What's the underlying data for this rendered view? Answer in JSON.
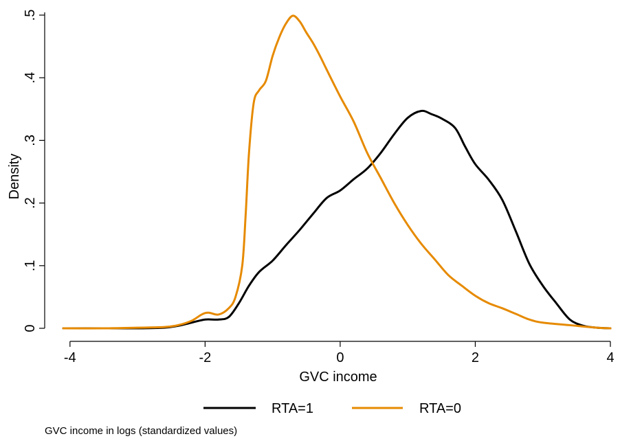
{
  "chart_data": {
    "type": "line",
    "title": "",
    "xlabel": "GVC income",
    "ylabel": "Density",
    "xlim": [
      -4.1,
      4.0
    ],
    "ylim": [
      0,
      0.5
    ],
    "xticks": [
      -4,
      -2,
      0,
      2,
      4
    ],
    "xtick_labels": [
      "-4",
      "-2",
      "0",
      "2",
      "4"
    ],
    "yticks": [
      0,
      0.1,
      0.2,
      0.3,
      0.4,
      0.5
    ],
    "ytick_labels": [
      "0",
      ".1",
      ".2",
      ".3",
      ".4",
      ".5"
    ],
    "grid": false,
    "legend_position": "bottom",
    "note": "GVC income in logs (standardized values)",
    "series": [
      {
        "name": "RTA=1",
        "color": "#000000",
        "points": [
          [
            -4.1,
            0.0
          ],
          [
            -3.5,
            0.0
          ],
          [
            -3.0,
            0.0
          ],
          [
            -2.6,
            0.001
          ],
          [
            -2.4,
            0.004
          ],
          [
            -2.2,
            0.009
          ],
          [
            -2.0,
            0.014
          ],
          [
            -1.8,
            0.014
          ],
          [
            -1.65,
            0.018
          ],
          [
            -1.5,
            0.04
          ],
          [
            -1.35,
            0.068
          ],
          [
            -1.2,
            0.09
          ],
          [
            -1.0,
            0.108
          ],
          [
            -0.8,
            0.133
          ],
          [
            -0.6,
            0.157
          ],
          [
            -0.4,
            0.183
          ],
          [
            -0.2,
            0.208
          ],
          [
            0.0,
            0.22
          ],
          [
            0.2,
            0.238
          ],
          [
            0.4,
            0.255
          ],
          [
            0.6,
            0.28
          ],
          [
            0.8,
            0.31
          ],
          [
            1.0,
            0.336
          ],
          [
            1.2,
            0.347
          ],
          [
            1.35,
            0.342
          ],
          [
            1.5,
            0.335
          ],
          [
            1.7,
            0.32
          ],
          [
            1.85,
            0.29
          ],
          [
            2.0,
            0.262
          ],
          [
            2.2,
            0.237
          ],
          [
            2.4,
            0.205
          ],
          [
            2.6,
            0.155
          ],
          [
            2.8,
            0.103
          ],
          [
            3.0,
            0.068
          ],
          [
            3.2,
            0.04
          ],
          [
            3.4,
            0.014
          ],
          [
            3.6,
            0.004
          ],
          [
            3.8,
            0.001
          ],
          [
            4.0,
            0.0
          ]
        ]
      },
      {
        "name": "RTA=0",
        "color": "#e68a00",
        "points": [
          [
            -4.1,
            0.0
          ],
          [
            -3.5,
            0.0
          ],
          [
            -3.0,
            0.001
          ],
          [
            -2.6,
            0.002
          ],
          [
            -2.4,
            0.005
          ],
          [
            -2.2,
            0.012
          ],
          [
            -2.05,
            0.022
          ],
          [
            -1.95,
            0.025
          ],
          [
            -1.8,
            0.022
          ],
          [
            -1.65,
            0.032
          ],
          [
            -1.55,
            0.05
          ],
          [
            -1.45,
            0.1
          ],
          [
            -1.4,
            0.18
          ],
          [
            -1.35,
            0.28
          ],
          [
            -1.28,
            0.36
          ],
          [
            -1.2,
            0.38
          ],
          [
            -1.1,
            0.395
          ],
          [
            -1.0,
            0.435
          ],
          [
            -0.9,
            0.465
          ],
          [
            -0.8,
            0.487
          ],
          [
            -0.7,
            0.499
          ],
          [
            -0.6,
            0.49
          ],
          [
            -0.5,
            0.472
          ],
          [
            -0.4,
            0.455
          ],
          [
            -0.3,
            0.435
          ],
          [
            -0.2,
            0.413
          ],
          [
            0.0,
            0.37
          ],
          [
            0.2,
            0.33
          ],
          [
            0.4,
            0.28
          ],
          [
            0.6,
            0.24
          ],
          [
            0.8,
            0.2
          ],
          [
            1.0,
            0.165
          ],
          [
            1.2,
            0.135
          ],
          [
            1.4,
            0.11
          ],
          [
            1.6,
            0.085
          ],
          [
            1.8,
            0.068
          ],
          [
            2.0,
            0.052
          ],
          [
            2.2,
            0.04
          ],
          [
            2.4,
            0.032
          ],
          [
            2.6,
            0.023
          ],
          [
            2.8,
            0.014
          ],
          [
            3.0,
            0.009
          ],
          [
            3.4,
            0.005
          ],
          [
            3.8,
            0.001
          ],
          [
            4.0,
            0.0
          ]
        ]
      }
    ]
  }
}
